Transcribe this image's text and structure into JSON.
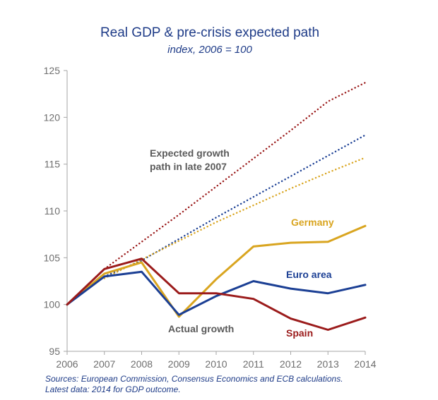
{
  "chart_data": {
    "type": "line",
    "title": "Real GDP & pre-crisis expected path",
    "subtitle": "index,  2006 = 100",
    "x": [
      2006,
      2007,
      2008,
      2009,
      2010,
      2011,
      2012,
      2013,
      2014
    ],
    "xticks": [
      "2006",
      "2007",
      "2008",
      "2009",
      "2010",
      "2011",
      "2012",
      "2013",
      "2014"
    ],
    "ylim": [
      95,
      125
    ],
    "yticks": [
      "95",
      "100",
      "105",
      "110",
      "115",
      "120",
      "125"
    ],
    "grid": false,
    "series": [
      {
        "name": "Germany",
        "style": "solid",
        "color": "#d9a520",
        "values": [
          100,
          103.3,
          104.5,
          98.7,
          102.7,
          106.2,
          106.6,
          106.7,
          108.4
        ]
      },
      {
        "name": "Euro area",
        "style": "solid",
        "color": "#1b3f94",
        "values": [
          100,
          103.0,
          103.5,
          98.9,
          100.9,
          102.5,
          101.7,
          101.2,
          102.1
        ]
      },
      {
        "name": "Spain",
        "style": "solid",
        "color": "#9b1b1b",
        "values": [
          100,
          103.8,
          104.9,
          101.2,
          101.2,
          100.6,
          98.5,
          97.3,
          98.6
        ]
      },
      {
        "style": "dotted",
        "color": "#9b1b1b",
        "values": [
          100,
          103.8,
          106.7,
          109.6,
          112.6,
          115.6,
          118.6,
          121.7,
          123.7
        ]
      },
      {
        "style": "dotted",
        "color": "#1b3f94",
        "values": [
          100,
          103.0,
          104.7,
          107.0,
          109.3,
          111.5,
          113.7,
          115.9,
          118.1
        ]
      },
      {
        "style": "dotted",
        "color": "#d9a520",
        "values": [
          100,
          102.8,
          104.8,
          106.8,
          108.8,
          110.6,
          112.4,
          114.1,
          115.7
        ]
      }
    ],
    "annotations": {
      "expected_line1": "Expected growth",
      "expected_line2": "path in late 2007",
      "actual": "Actual growth"
    },
    "labels": {
      "germany": "Germany",
      "euro_area": "Euro area",
      "spain": "Spain"
    },
    "label_colors": {
      "germany": "#d9a520",
      "euro_area": "#1b3f94",
      "spain": "#9b1b1b"
    }
  },
  "footer": {
    "sources": "Sources: European Commission, Consensus Economics and ECB calculations.",
    "latest": "Latest data: 2014 for GDP outcome."
  }
}
